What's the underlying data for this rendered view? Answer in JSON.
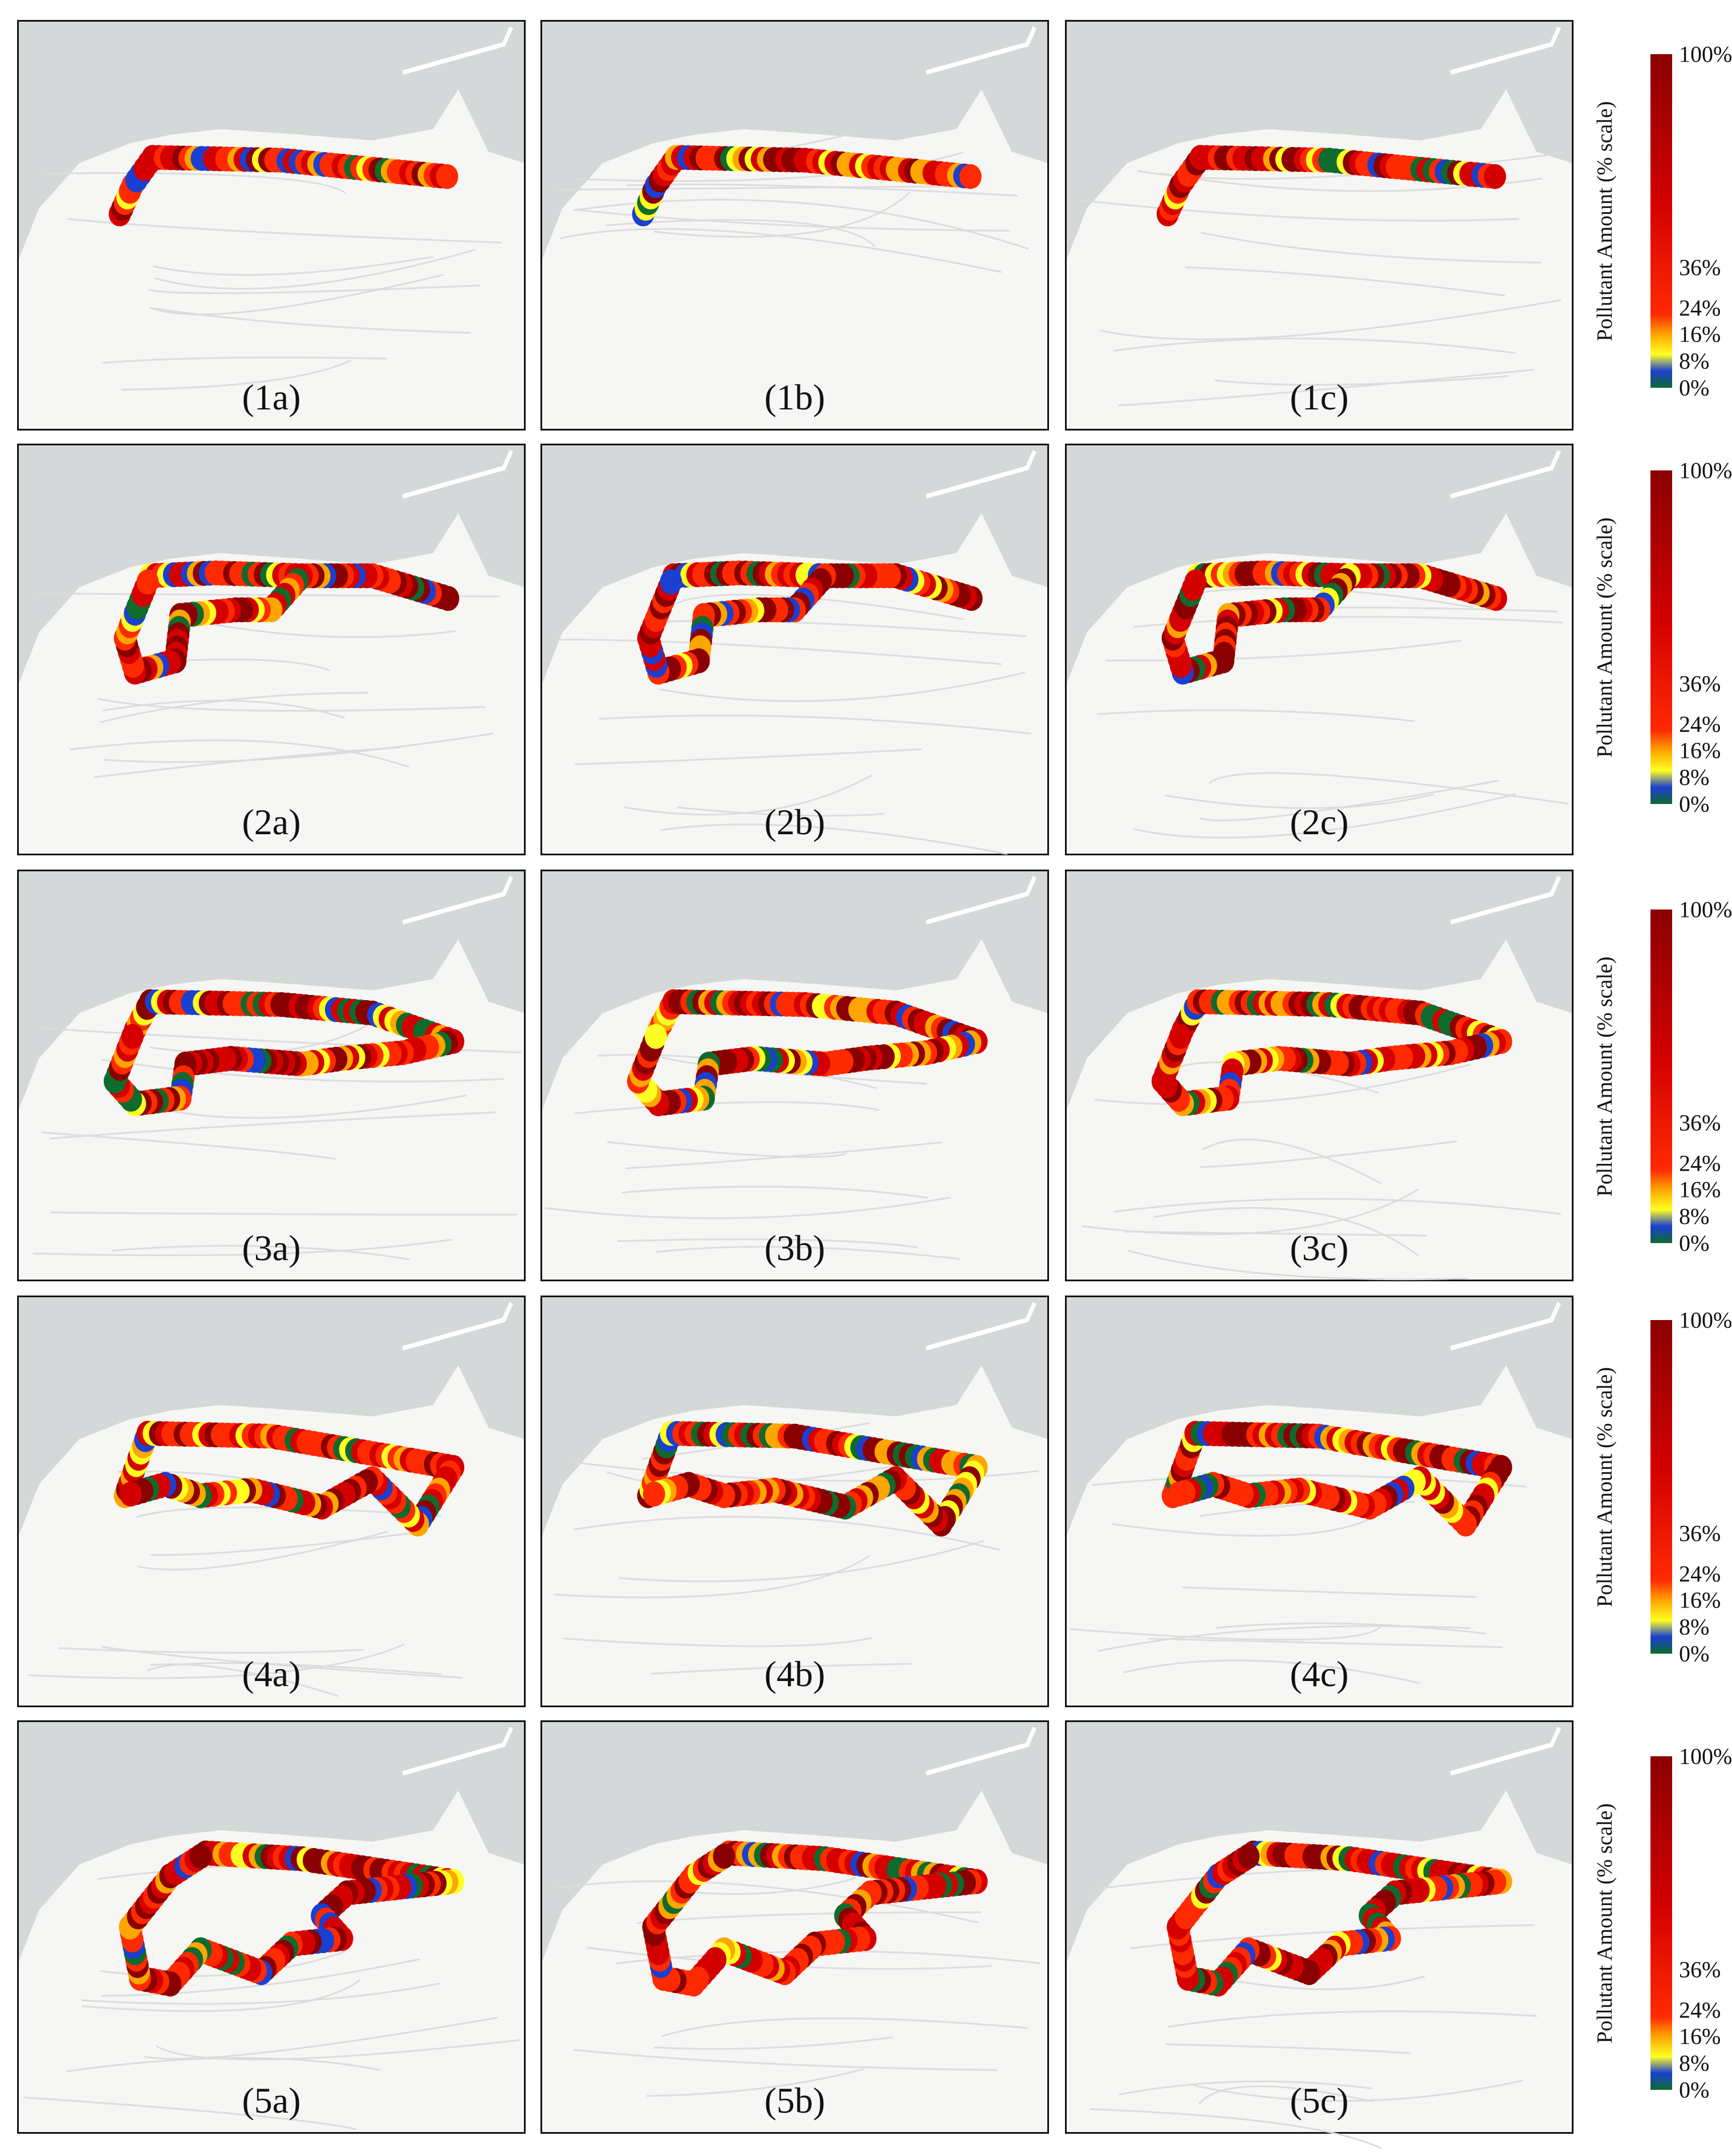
{
  "panels": [
    {
      "label": "(1a)"
    },
    {
      "label": "(1b)"
    },
    {
      "label": "(1c)"
    },
    {
      "label": "(2a)"
    },
    {
      "label": "(2b)"
    },
    {
      "label": "(2c)"
    },
    {
      "label": "(3a)"
    },
    {
      "label": "(3b)"
    },
    {
      "label": "(3c)"
    },
    {
      "label": "(4a)"
    },
    {
      "label": "(4b)"
    },
    {
      "label": "(4c)"
    },
    {
      "label": "(5a)"
    },
    {
      "label": "(5b)"
    },
    {
      "label": "(5c)"
    }
  ],
  "legend": {
    "title": "Pollutant Amount (% scale)",
    "ticks": [
      {
        "label": "100%",
        "value": 100
      },
      {
        "label": "36%",
        "value": 36
      },
      {
        "label": "24%",
        "value": 24
      },
      {
        "label": "16%",
        "value": 16
      },
      {
        "label": "8%",
        "value": 8
      },
      {
        "label": "0%",
        "value": 0
      }
    ],
    "colors": [
      "#0e6b2e",
      "#1a3fd1",
      "#ffff22",
      "#ffa500",
      "#ff2a00",
      "#d40000",
      "#8a0000"
    ]
  },
  "colors": {
    "sea": "#d5d8d8",
    "land": "#f6f6f4",
    "border": "#111111"
  }
}
